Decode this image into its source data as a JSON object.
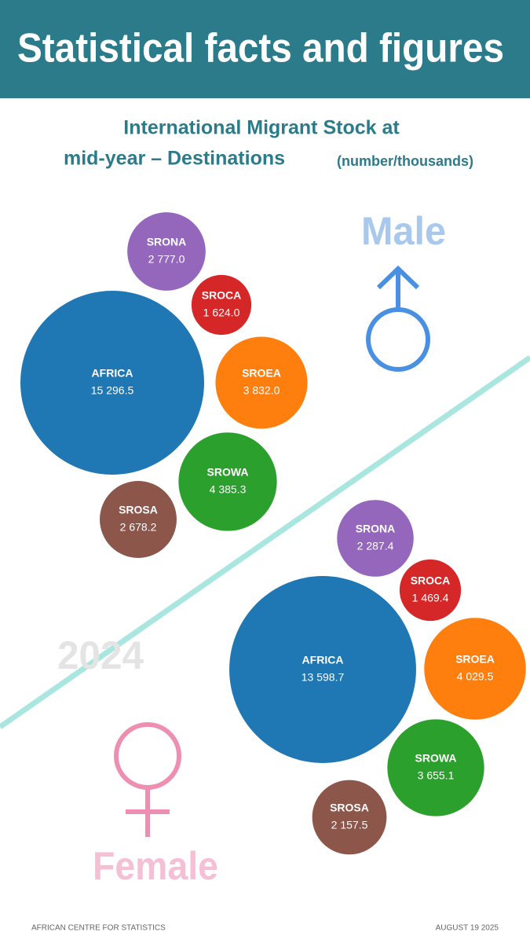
{
  "header": {
    "title": "Statistical facts and figures"
  },
  "title_lines": [
    "International Migrant Stock at",
    "mid-year – Destinations"
  ],
  "subtitle": "(number/thousands)",
  "chart_data": [
    {
      "type": "bubble",
      "name": "Male",
      "categories": [
        "SRONA",
        "SROCA",
        "AFRICA",
        "SROEA",
        "SROWA",
        "SROSA"
      ],
      "values": [
        2777.0,
        1624.0,
        15296.5,
        3832.0,
        4385.3,
        2678.2
      ],
      "value_labels": [
        "2 777.0",
        "1 624.0",
        "15 296.5",
        "3 832.0",
        "4 385.3",
        "2 678.2"
      ],
      "colors": [
        "#9467bd",
        "#d62728",
        "#1f77b4",
        "#ff7f0e",
        "#2ca02c",
        "#8c564b"
      ]
    },
    {
      "type": "bubble",
      "name": "Female",
      "categories": [
        "SRONA",
        "SROCA",
        "AFRICA",
        "SROEA",
        "SROWA",
        "SROSA"
      ],
      "values": [
        2287.4,
        1469.4,
        13598.7,
        4029.5,
        3655.1,
        2157.5
      ],
      "value_labels": [
        "2 287.4",
        "1 469.4",
        "13 598.7",
        "4 029.5",
        "3 655.1",
        "2 157.5"
      ],
      "colors": [
        "#9467bd",
        "#d62728",
        "#1f77b4",
        "#ff7f0e",
        "#2ca02c",
        "#8c564b"
      ]
    }
  ],
  "year": "2024",
  "footer": {
    "source": "AFRICAN CENTRE FOR STATISTICS",
    "date": "AUGUST 19 2025"
  }
}
